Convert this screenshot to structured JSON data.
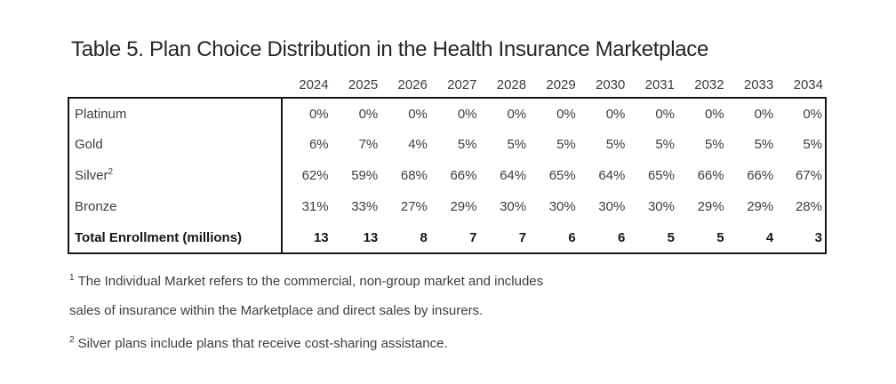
{
  "title": "Table 5. Plan Choice Distribution in the Health Insurance Marketplace",
  "table": {
    "year_columns": [
      "2024",
      "2025",
      "2026",
      "2027",
      "2028",
      "2029",
      "2030",
      "2031",
      "2032",
      "2033",
      "2034"
    ],
    "rows": [
      {
        "label": "Platinum",
        "sup": "",
        "bold": false,
        "values": [
          "0%",
          "0%",
          "0%",
          "0%",
          "0%",
          "0%",
          "0%",
          "0%",
          "0%",
          "0%",
          "0%"
        ]
      },
      {
        "label": "Gold",
        "sup": "",
        "bold": false,
        "values": [
          "6%",
          "7%",
          "4%",
          "5%",
          "5%",
          "5%",
          "5%",
          "5%",
          "5%",
          "5%",
          "5%"
        ]
      },
      {
        "label": "Silver",
        "sup": "2",
        "bold": false,
        "values": [
          "62%",
          "59%",
          "68%",
          "66%",
          "64%",
          "65%",
          "64%",
          "65%",
          "66%",
          "66%",
          "67%"
        ]
      },
      {
        "label": "Bronze",
        "sup": "",
        "bold": false,
        "values": [
          "31%",
          "33%",
          "27%",
          "29%",
          "30%",
          "30%",
          "30%",
          "30%",
          "29%",
          "29%",
          "28%"
        ]
      },
      {
        "label": "Total Enrollment (millions)",
        "sup": "",
        "bold": true,
        "values": [
          "13",
          "13",
          "8",
          "7",
          "7",
          "6",
          "6",
          "5",
          "5",
          "4",
          "3"
        ]
      }
    ]
  },
  "footnotes": [
    {
      "marker": "1",
      "lines": [
        "The Individual Market refers to the commercial, non-group market and includes",
        "sales of insurance within the Marketplace and direct sales by insurers."
      ]
    },
    {
      "marker": "2",
      "lines": [
        "Silver plans include plans that receive cost-sharing assistance."
      ]
    }
  ],
  "colors": {
    "text": "#3d3d3d",
    "emphasis": "#161616",
    "border": "#161616",
    "background": "#ffffff"
  }
}
